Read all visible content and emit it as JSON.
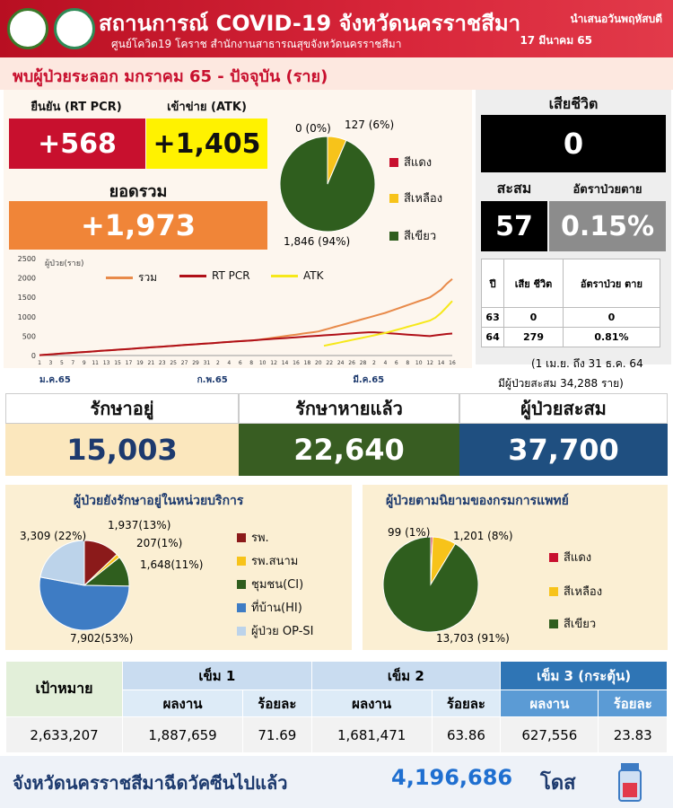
{
  "header": {
    "title": "สถานการณ์ COVID-19 จังหวัดนครราชสีมา",
    "subtitle": "ศูนย์โควิด19 โคราช สำนักงานสาธารณสุขจังหวัดนครราชสีมา",
    "presented": "นำเสนอวันพฤหัสบดี",
    "date": "17 มีนาคม 65"
  },
  "banner": "พบผู้ป่วยระลอก มกราคม 65 - ปัจจุบัน (ราย)",
  "daily": {
    "rtpcr_label": "ยืนยัน (RT PCR)",
    "rtpcr_value": "+568",
    "atk_label": "เข้าข่าย (ATK)",
    "atk_value": "+1,405",
    "total_label": "ยอดรวม",
    "total_value": "+1,973"
  },
  "deaths": {
    "label": "เสียชีวิต",
    "value": "0",
    "cum_label": "สะสม",
    "cum_value": "57",
    "rate_label": "อัตราป่วยตาย",
    "rate_value": "0.15%"
  },
  "death_table": {
    "headers": [
      "ปี",
      "เสีย ชีวิต",
      "อัตราป่วย ตาย"
    ],
    "rows": [
      [
        "63",
        "0",
        "0"
      ],
      [
        "64",
        "279",
        "0.81%"
      ]
    ],
    "note1": "(1 เม.ย. ถึง 31 ธ.ค. 64",
    "note2": "มีผู้ป่วยสะสม  34,288 ราย)"
  },
  "status": {
    "treating_label": "รักษาอยู่",
    "treating_value": "15,003",
    "recovered_label": "รักษาหายแล้ว",
    "recovered_value": "22,640",
    "cumulative_label": "ผู้ป่วยสะสม",
    "cumulative_value": "37,700"
  },
  "colors": {
    "red": "#c8102e",
    "yellow": "#f7c31a",
    "green": "#2f5e1e",
    "blue": "#3e7cc4",
    "lightblue": "#bcd3ea",
    "navy": "#1d3a6e",
    "orange": "#f08538"
  },
  "chart_data": [
    {
      "type": "pie",
      "labels": [
        "สีแดง",
        "สีเหลือง",
        "สีเขียว"
      ],
      "values": [
        0,
        127,
        1846
      ],
      "slice_labels": [
        "0 (0%)",
        "127 (6%)",
        "1,846 (94%)"
      ]
    },
    {
      "type": "line",
      "ylabel": "ผู้ป่วย(ราย)",
      "yticks": [
        0,
        500,
        1000,
        1500,
        2000,
        2500
      ],
      "ylim": [
        0,
        2500
      ],
      "x": [
        "1",
        "2",
        "3",
        "4",
        "5",
        "6",
        "7",
        "8",
        "9",
        "10",
        "11",
        "12",
        "13",
        "14",
        "15",
        "16",
        "17",
        "18",
        "19",
        "20",
        "21",
        "22",
        "23",
        "24",
        "25",
        "26",
        "27",
        "28",
        "29",
        "30",
        "31",
        "1",
        "2",
        "3",
        "4",
        "5",
        "6",
        "7",
        "8",
        "9",
        "10",
        "11",
        "12",
        "13",
        "14",
        "15",
        "16",
        "17",
        "18",
        "19",
        "20",
        "21",
        "22",
        "23",
        "24",
        "25",
        "26",
        "27",
        "28",
        "1",
        "2",
        "3",
        "4",
        "5",
        "6",
        "7",
        "8",
        "9",
        "10",
        "11",
        "12",
        "13",
        "14",
        "15",
        "16"
      ],
      "xtick_labels": [
        "1",
        "3",
        "5",
        "7",
        "9",
        "11",
        "13",
        "15",
        "17",
        "19",
        "21",
        "23",
        "25",
        "27",
        "29",
        "31",
        "2",
        "4",
        "6",
        "8",
        "10",
        "12",
        "14",
        "16",
        "18",
        "20",
        "22",
        "24",
        "26",
        "28",
        "2",
        "4",
        "6",
        "8",
        "10",
        "12",
        "14",
        "16"
      ],
      "month_labels": [
        "ม.ค.65",
        "ก.พ.65",
        "มี.ค.65"
      ],
      "series": [
        {
          "name": "รวม",
          "values": [
            10,
            20,
            30,
            40,
            50,
            60,
            70,
            80,
            90,
            100,
            110,
            120,
            130,
            140,
            150,
            160,
            170,
            180,
            190,
            200,
            210,
            220,
            230,
            240,
            250,
            260,
            270,
            280,
            290,
            300,
            310,
            320,
            330,
            340,
            350,
            360,
            370,
            380,
            390,
            400,
            420,
            440,
            460,
            480,
            500,
            520,
            540,
            560,
            580,
            600,
            620,
            660,
            700,
            740,
            780,
            820,
            860,
            900,
            940,
            980,
            1020,
            1060,
            1100,
            1150,
            1200,
            1250,
            1300,
            1350,
            1400,
            1450,
            1500,
            1600,
            1700,
            1850,
            1973
          ]
        },
        {
          "name": "RT PCR",
          "values": [
            10,
            20,
            30,
            40,
            50,
            60,
            70,
            80,
            90,
            100,
            110,
            120,
            130,
            140,
            150,
            160,
            170,
            180,
            190,
            200,
            210,
            220,
            230,
            240,
            250,
            260,
            270,
            280,
            290,
            300,
            310,
            320,
            330,
            340,
            350,
            360,
            370,
            380,
            390,
            400,
            410,
            420,
            430,
            440,
            450,
            460,
            470,
            480,
            490,
            500,
            510,
            520,
            530,
            540,
            550,
            560,
            570,
            580,
            590,
            600,
            600,
            590,
            580,
            570,
            560,
            550,
            540,
            530,
            520,
            510,
            500,
            520,
            540,
            555,
            568
          ]
        },
        {
          "name": "ATK",
          "values": [
            null,
            null,
            null,
            null,
            null,
            null,
            null,
            null,
            null,
            null,
            null,
            null,
            null,
            null,
            null,
            null,
            null,
            null,
            null,
            null,
            null,
            null,
            null,
            null,
            null,
            null,
            null,
            null,
            null,
            null,
            null,
            null,
            null,
            null,
            null,
            null,
            null,
            null,
            null,
            null,
            null,
            null,
            null,
            null,
            null,
            null,
            null,
            null,
            null,
            null,
            null,
            250,
            280,
            310,
            340,
            370,
            400,
            430,
            460,
            490,
            520,
            550,
            580,
            620,
            660,
            700,
            740,
            780,
            820,
            860,
            900,
            980,
            1100,
            1250,
            1405
          ]
        }
      ]
    },
    {
      "type": "pie",
      "title": "ผู้ป่วยยังรักษาอยู่ในหน่วยบริการ",
      "labels": [
        "รพ.",
        "รพ.สนาม",
        "ชุมชน(CI)",
        "ที่บ้าน(HI)",
        "ผู้ป่วย OP-SI"
      ],
      "values": [
        1937,
        207,
        1648,
        7902,
        3309
      ],
      "slice_labels": [
        "1,937(13%)",
        "207(1%)",
        "1,648(11%)",
        "7,902(53%)",
        "3,309 (22%)"
      ]
    },
    {
      "type": "pie",
      "title": "ผู้ป่วยตามนิยามของกรมการแพทย์",
      "labels": [
        "สีแดง",
        "สีเหลือง",
        "สีเขียว"
      ],
      "values": [
        99,
        1201,
        13703
      ],
      "slice_labels": [
        "99 (1%)",
        "1,201 (8%)",
        "13,703 (91%)"
      ]
    },
    {
      "type": "table",
      "target_label": "เป้าหมาย",
      "groups": [
        "เข็ม 1",
        "เข็ม 2",
        "เข็ม 3 (กระตุ้น)"
      ],
      "sub_headers": [
        "ผลงาน",
        "ร้อยละ"
      ],
      "target": "2,633,207",
      "values": [
        [
          "1,887,659",
          "71.69"
        ],
        [
          "1,681,471",
          "63.86"
        ],
        [
          "627,556",
          "23.83"
        ]
      ]
    }
  ],
  "footer": {
    "text": "จังหวัดนครราชสีมาฉีดวัคซีนไปแล้ว",
    "value": "4,196,686",
    "unit": "โดส"
  }
}
